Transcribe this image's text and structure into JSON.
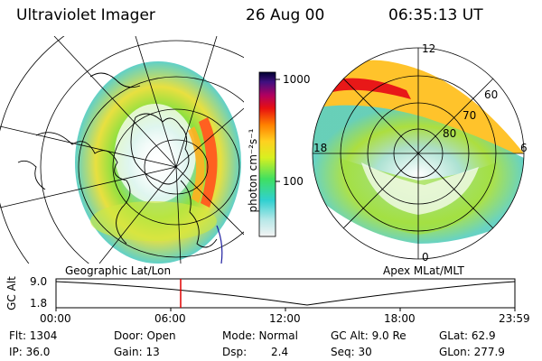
{
  "header": {
    "title": "Ultraviolet Imager",
    "date": "26 Aug 00",
    "time": "06:35:13 UT"
  },
  "colorbar": {
    "unit_label": "photon cm⁻²s⁻¹",
    "ticks": [
      "1000",
      "100"
    ]
  },
  "left_panel": {
    "caption": "Geographic Lat/Lon"
  },
  "right_panel": {
    "caption": "Apex MLat/MLT",
    "mlt_labels": {
      "top": "12",
      "bottom": "0",
      "left": "18",
      "right": "6"
    },
    "lat_labels": [
      "60",
      "70",
      "80"
    ]
  },
  "altitude_plot": {
    "ylabel": "GC Alt",
    "yticks": [
      "9.0",
      "1.8"
    ],
    "xticks": [
      "00:00",
      "06:00",
      "12:00",
      "18:00",
      "23:59"
    ]
  },
  "footer": {
    "row1": {
      "flt": "Flt: 1304",
      "door": "Door: Open",
      "mode": "Mode: Normal",
      "gc_alt": "GC Alt: 9.0 Re",
      "glat": "GLat:  62.9"
    },
    "row2": {
      "ip": "IP: 36.0",
      "gain": "Gain: 13",
      "dsp_label": "Dsp:",
      "dsp_value": "2.4",
      "seq": "Seq: 30",
      "glon": "GLon: 277.9"
    }
  },
  "colors": {
    "marker": "#e00000",
    "text": "#000000",
    "background": "#ffffff"
  }
}
